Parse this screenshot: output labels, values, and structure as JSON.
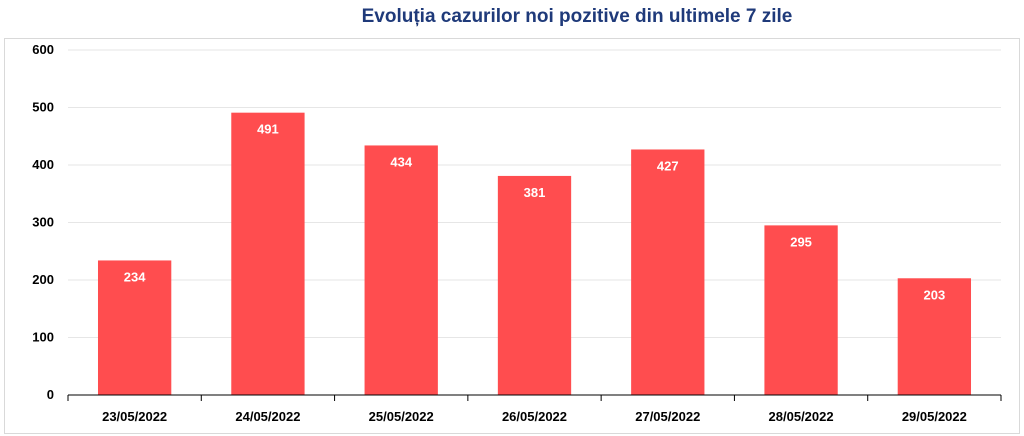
{
  "chart_data": {
    "type": "bar",
    "title": "Evoluția cazurilor noi pozitive din ultimele 7 zile",
    "categories": [
      "23/05/2022",
      "24/05/2022",
      "25/05/2022",
      "26/05/2022",
      "27/05/2022",
      "28/05/2022",
      "29/05/2022"
    ],
    "values": [
      234,
      491,
      434,
      381,
      427,
      295,
      203
    ],
    "data_labels": [
      "234",
      "491",
      "434",
      "381",
      "427",
      "295",
      "203"
    ],
    "y_ticks": [
      "0",
      "100",
      "200",
      "300",
      "400",
      "500",
      "600"
    ],
    "ylim": [
      0,
      600
    ],
    "grid": true,
    "legend": "none",
    "bar_color": "#ff4d4f",
    "grid_color": "#e6e6e6"
  }
}
